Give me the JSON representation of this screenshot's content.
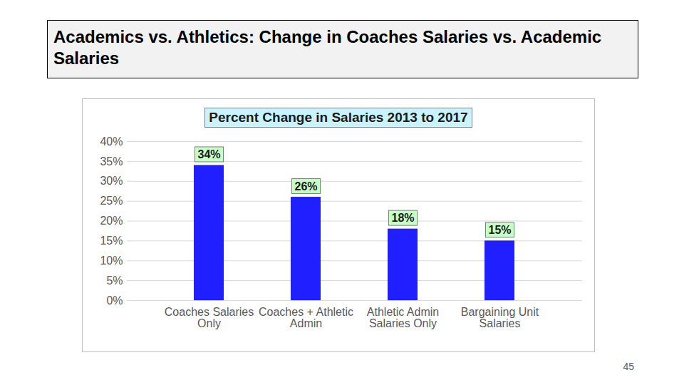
{
  "slide": {
    "title": "Academics vs. Athletics: Change in Coaches Salaries vs. Academic Salaries",
    "page_number": 45
  },
  "chart_data": {
    "type": "bar",
    "title": "Percent Change in Salaries 2013 to 2017",
    "categories": [
      "Coaches Salaries Only",
      "Coaches + Athletic Admin",
      "Athletic Admin Salaries Only",
      "Bargaining Unit Salaries"
    ],
    "values": [
      34,
      26,
      18,
      15
    ],
    "value_labels": [
      "34%",
      "26%",
      "18%",
      "15%"
    ],
    "color": "#1f1fff",
    "ylim": [
      0,
      40
    ],
    "yticks": [
      {
        "value": 0,
        "label": "0%"
      },
      {
        "value": 5,
        "label": "5%"
      },
      {
        "value": 10,
        "label": "10%"
      },
      {
        "value": 15,
        "label": "15%"
      },
      {
        "value": 20,
        "label": "20%"
      },
      {
        "value": 25,
        "label": "25%"
      },
      {
        "value": 30,
        "label": "30%"
      },
      {
        "value": 35,
        "label": "35%"
      },
      {
        "value": 40,
        "label": "40%"
      }
    ],
    "grid": true,
    "data_labels": true
  }
}
